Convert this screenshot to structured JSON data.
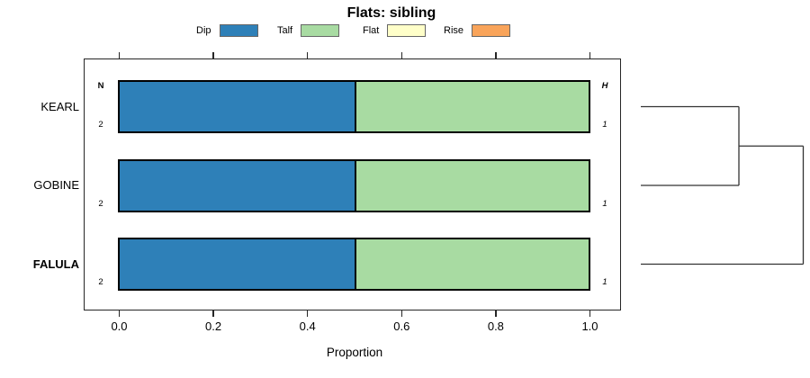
{
  "title": "Flats: sibling",
  "legend": [
    {
      "label": "Dip",
      "color": "#2E80B8"
    },
    {
      "label": "Talf",
      "color": "#A8DBA2"
    },
    {
      "label": "Flat",
      "color": "#FFFFC9"
    },
    {
      "label": "Rise",
      "color": "#F9A45A"
    }
  ],
  "columns": {
    "n_header": "N",
    "h_header": "H"
  },
  "rows": [
    {
      "label": "KEARL",
      "bold": false,
      "n": "2",
      "h": "1"
    },
    {
      "label": "GOBINE",
      "bold": false,
      "n": "2",
      "h": "1"
    },
    {
      "label": "FALULA",
      "bold": true,
      "n": "2",
      "h": "1"
    }
  ],
  "x_axis": {
    "ticks": [
      "0.0",
      "0.2",
      "0.4",
      "0.6",
      "0.8",
      "1.0"
    ],
    "label": "Proportion"
  },
  "chart_data": {
    "type": "bar",
    "orientation": "horizontal",
    "stacked": true,
    "title": "Flats: sibling",
    "categories": [
      "KEARL",
      "GOBINE",
      "FALULA"
    ],
    "series": [
      {
        "name": "Dip",
        "color": "#2E80B8",
        "values": [
          0.5,
          0.5,
          0.5
        ]
      },
      {
        "name": "Talf",
        "color": "#A8DBA2",
        "values": [
          0.5,
          0.5,
          0.5
        ]
      },
      {
        "name": "Flat",
        "color": "#FFFFC9",
        "values": [
          0,
          0,
          0
        ]
      },
      {
        "name": "Rise",
        "color": "#F9A45A",
        "values": [
          0,
          0,
          0
        ]
      }
    ],
    "n_values": [
      2,
      2,
      2
    ],
    "h_values": [
      1,
      1,
      1
    ],
    "xlabel": "Proportion",
    "xlim": [
      0,
      1
    ],
    "x_ticks": [
      0.0,
      0.2,
      0.4,
      0.6,
      0.8,
      1.0
    ],
    "legend_position": "top",
    "grid": false,
    "dendrogram": {
      "leaves": [
        "KEARL",
        "GOBINE",
        "FALULA"
      ],
      "merges": [
        {
          "a": 0,
          "b": 1
        },
        {
          "a": 3,
          "b": 2
        }
      ]
    }
  }
}
